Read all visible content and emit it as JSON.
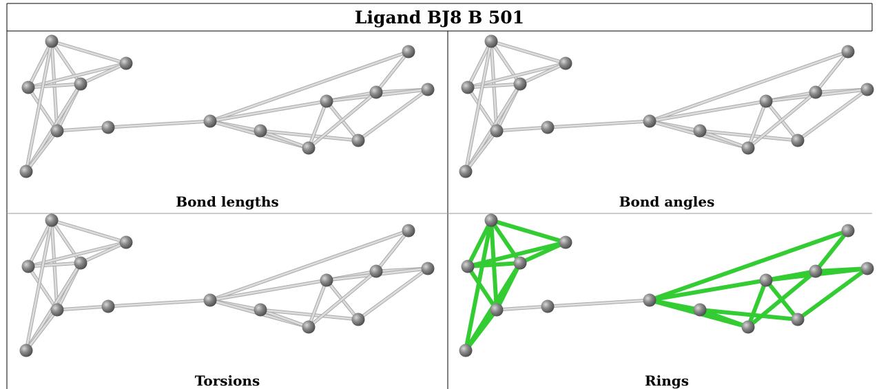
{
  "title": "Ligand BJ8 B 501",
  "panels": [
    {
      "label": "Bond lengths"
    },
    {
      "label": "Bond angles"
    },
    {
      "label": "Torsions"
    },
    {
      "label": "Rings"
    }
  ]
}
